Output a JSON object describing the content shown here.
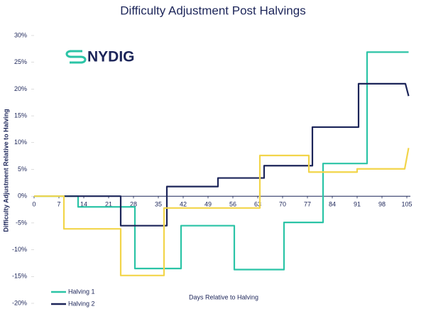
{
  "chart_data": {
    "type": "line",
    "title": "Difficulty Adjustment Post Halvings",
    "logo": "NYDIG",
    "x_label": "Days Relative to Halving",
    "y_label": "Difficulty Adjustment Relative to Halving",
    "xlim": [
      0,
      106
    ],
    "xticks": [
      0,
      7,
      14,
      21,
      28,
      35,
      42,
      49,
      56,
      63,
      70,
      77,
      84,
      91,
      98,
      105
    ],
    "ylim": [
      -20,
      30
    ],
    "yticks": [
      {
        "value": 30,
        "label": "30%"
      },
      {
        "value": 25,
        "label": "25%"
      },
      {
        "value": 20,
        "label": "20%"
      },
      {
        "value": 15,
        "label": "15%"
      },
      {
        "value": 10,
        "label": "10%"
      },
      {
        "value": 5,
        "label": "5%"
      },
      {
        "value": 0,
        "label": "0%"
      },
      {
        "value": -5,
        "label": "-5%"
      },
      {
        "value": -10,
        "label": "-10%"
      },
      {
        "value": -15,
        "label": "-15%"
      },
      {
        "value": -20,
        "label": "-20%"
      }
    ],
    "legend": "lower left",
    "series": [
      {
        "name": "Halving 1",
        "color": "#2bc4a6",
        "x": [
          0,
          12.4,
          12.4,
          28.4,
          28.4,
          41.4,
          41.4,
          56.4,
          56.4,
          70.4,
          70.4,
          81.4,
          81.4,
          93.8,
          93.8,
          105.5
        ],
        "values": [
          0,
          0,
          -2,
          -2,
          -13.5,
          -13.5,
          -5.5,
          -5.5,
          -13.7,
          -13.7,
          -4.9,
          -4.9,
          6.1,
          6.1,
          26.9,
          26.9
        ]
      },
      {
        "name": "Halving 2",
        "color": "#1c2559",
        "x": [
          8.4,
          24.4,
          24.4,
          37.4,
          37.4,
          51.8,
          51.8,
          64.8,
          64.8,
          78.4,
          78.4,
          91.4,
          91.4,
          104.6,
          105.5
        ],
        "values": [
          0,
          0,
          -5.5,
          -5.5,
          1.8,
          1.8,
          3.4,
          3.4,
          5.7,
          5.7,
          12.9,
          12.9,
          21,
          21,
          18.7
        ]
      },
      {
        "color": "#f2d54a",
        "x": [
          0,
          8.4,
          8.4,
          24.4,
          24.4,
          36.6,
          36.6,
          63.6,
          63.6,
          77.4,
          77.4,
          91,
          91,
          104.4,
          105.5
        ],
        "values": [
          0,
          0,
          -6.1,
          -6.1,
          -14.8,
          -14.8,
          -2.2,
          -2.2,
          7.6,
          7.6,
          4.5,
          4.5,
          5.1,
          5.1,
          9
        ]
      }
    ]
  }
}
